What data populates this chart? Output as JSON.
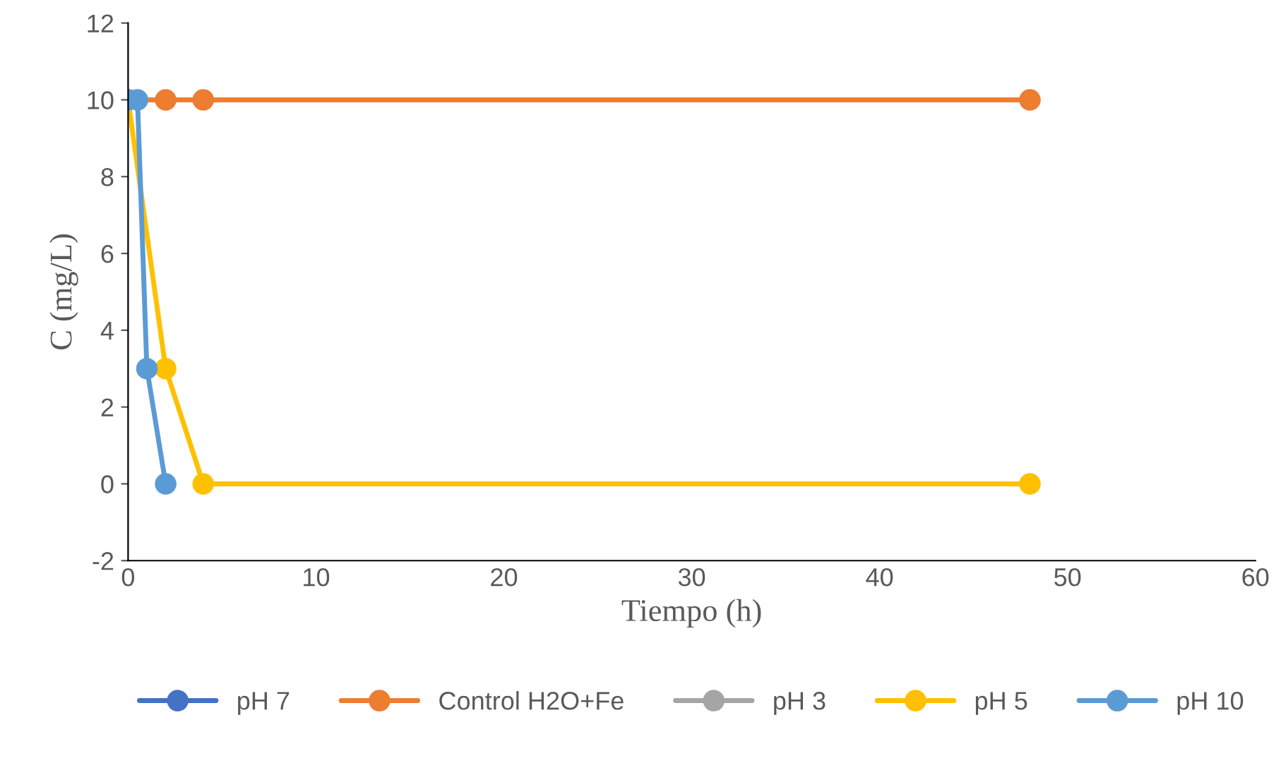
{
  "chart_data": {
    "type": "line",
    "xlabel": "Tiempo (h)",
    "ylabel": "C (mg/L)",
    "xlim": [
      0,
      60
    ],
    "xticks": [
      0,
      10,
      20,
      30,
      40,
      50,
      60
    ],
    "ylim": [
      -2,
      12
    ],
    "yticks": [
      -2,
      0,
      2,
      4,
      6,
      8,
      10,
      12
    ],
    "grid": false,
    "legend": "bottom",
    "marker": "circle",
    "line_style": "solid",
    "series": [
      {
        "name": "pH 7",
        "color": "#4472c4"
      },
      {
        "name": "Control H2O+Fe",
        "color": "#ed7d31",
        "x": [
          0,
          2,
          4,
          48
        ],
        "values": [
          10,
          10,
          10,
          10
        ]
      },
      {
        "name": "pH 3",
        "color": "#a5a5a5"
      },
      {
        "name": "pH 5",
        "color": "#ffc000",
        "x": [
          0,
          2,
          4,
          48
        ],
        "values": [
          10,
          3,
          0,
          0
        ]
      },
      {
        "name": "pH 10",
        "color": "#5b9bd5",
        "x": [
          0,
          0.5,
          1,
          2
        ],
        "values": [
          10,
          10,
          3,
          0
        ]
      }
    ]
  }
}
